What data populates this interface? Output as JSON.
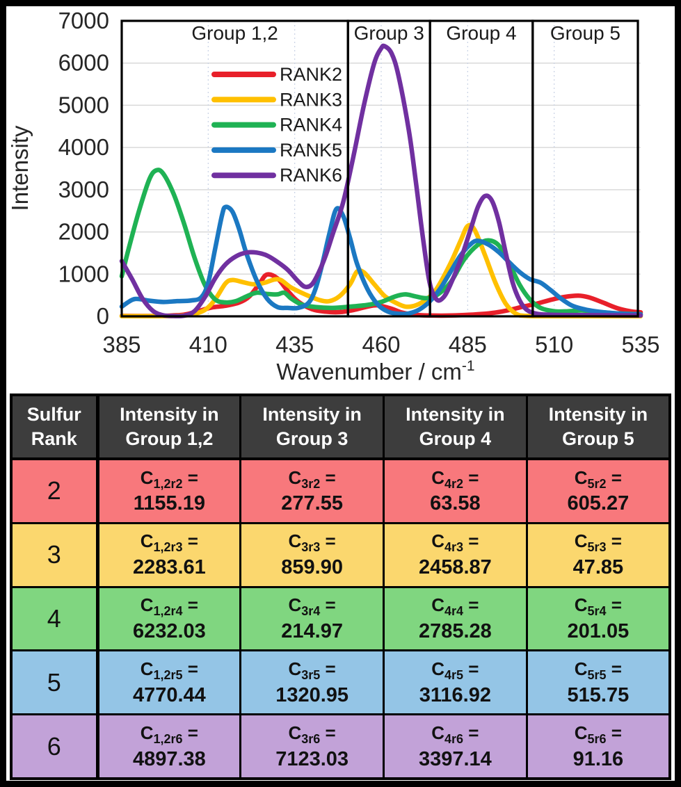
{
  "chart": {
    "y_axis": {
      "label": "Intensity",
      "ticks": [
        0,
        1000,
        2000,
        3000,
        4000,
        5000,
        6000,
        7000
      ],
      "min": 0,
      "max": 7000
    },
    "x_axis": {
      "label_base": "Wavenumber / cm",
      "label_sup": "-1",
      "ticks": [
        385,
        410,
        435,
        460,
        485,
        510,
        535
      ],
      "min": 385,
      "max": 535
    },
    "groups": [
      {
        "label": "Group 1,2",
        "x_from": 385,
        "x_to": 450.4
      },
      {
        "label": "Group 3",
        "x_from": 450.4,
        "x_to": 474.1
      },
      {
        "label": "Group 4",
        "x_from": 474.1,
        "x_to": 503.8
      },
      {
        "label": "Group 5",
        "x_from": 503.8,
        "x_to": 534.2
      }
    ],
    "legend": [
      {
        "label": "RANK2",
        "color": "#e8202a"
      },
      {
        "label": "RANK3",
        "color": "#ffc000"
      },
      {
        "label": "RANK4",
        "color": "#1fb254"
      },
      {
        "label": "RANK5",
        "color": "#1b78c2"
      },
      {
        "label": "RANK6",
        "color": "#7030a0"
      }
    ],
    "grid_color_h": "#d9d9d9",
    "grid_color_v": "#c9d2e4",
    "box_color": "#000000",
    "text_color": "#262626"
  },
  "chart_data": {
    "type": "line",
    "title": "",
    "xlabel": "Wavenumber / cm⁻¹",
    "ylabel": "Intensity",
    "xlim": [
      385,
      535
    ],
    "ylim": [
      0,
      7000
    ],
    "grid": true,
    "legend_position": "upper-left-inside",
    "series": [
      {
        "name": "RANK2",
        "color": "#e8202a",
        "points": [
          [
            385,
            10
          ],
          [
            392,
            8
          ],
          [
            398,
            15
          ],
          [
            403,
            40
          ],
          [
            407,
            120
          ],
          [
            411,
            210
          ],
          [
            415,
            250
          ],
          [
            419,
            330
          ],
          [
            422,
            480
          ],
          [
            425,
            800
          ],
          [
            427,
            990
          ],
          [
            430,
            900
          ],
          [
            433,
            600
          ],
          [
            436,
            350
          ],
          [
            440,
            170
          ],
          [
            444,
            110
          ],
          [
            448,
            100
          ],
          [
            452,
            150
          ],
          [
            456,
            230
          ],
          [
            459,
            260
          ],
          [
            463,
            180
          ],
          [
            466,
            90
          ],
          [
            470,
            35
          ],
          [
            474,
            20
          ],
          [
            479,
            18
          ],
          [
            484,
            30
          ],
          [
            489,
            55
          ],
          [
            493,
            90
          ],
          [
            497,
            150
          ],
          [
            501,
            230
          ],
          [
            505,
            300
          ],
          [
            509,
            390
          ],
          [
            513,
            460
          ],
          [
            517,
            490
          ],
          [
            520,
            450
          ],
          [
            524,
            330
          ],
          [
            528,
            200
          ],
          [
            532,
            120
          ],
          [
            535,
            95
          ]
        ]
      },
      {
        "name": "RANK3",
        "color": "#ffc000",
        "points": [
          [
            385,
            5
          ],
          [
            395,
            5
          ],
          [
            401,
            10
          ],
          [
            405,
            40
          ],
          [
            409,
            150
          ],
          [
            412,
            400
          ],
          [
            415,
            780
          ],
          [
            417,
            860
          ],
          [
            420,
            810
          ],
          [
            423,
            760
          ],
          [
            426,
            790
          ],
          [
            429,
            870
          ],
          [
            431,
            860
          ],
          [
            434,
            680
          ],
          [
            438,
            520
          ],
          [
            442,
            390
          ],
          [
            445,
            360
          ],
          [
            448,
            480
          ],
          [
            451,
            760
          ],
          [
            453,
            1060
          ],
          [
            455,
            1040
          ],
          [
            458,
            760
          ],
          [
            461,
            480
          ],
          [
            464,
            330
          ],
          [
            467,
            230
          ],
          [
            470,
            260
          ],
          [
            473,
            400
          ],
          [
            476,
            650
          ],
          [
            480,
            1250
          ],
          [
            483,
            1800
          ],
          [
            485,
            2140
          ],
          [
            487,
            2050
          ],
          [
            490,
            1450
          ],
          [
            493,
            800
          ],
          [
            496,
            300
          ],
          [
            499,
            60
          ],
          [
            502,
            10
          ],
          [
            510,
            5
          ],
          [
            525,
            5
          ],
          [
            535,
            5
          ]
        ]
      },
      {
        "name": "RANK4",
        "color": "#1fb254",
        "points": [
          [
            385,
            950
          ],
          [
            387,
            1600
          ],
          [
            390,
            2500
          ],
          [
            393,
            3250
          ],
          [
            395,
            3460
          ],
          [
            397,
            3380
          ],
          [
            400,
            2900
          ],
          [
            403,
            2200
          ],
          [
            406,
            1400
          ],
          [
            409,
            750
          ],
          [
            412,
            400
          ],
          [
            415,
            330
          ],
          [
            418,
            360
          ],
          [
            421,
            470
          ],
          [
            424,
            560
          ],
          [
            427,
            530
          ],
          [
            430,
            520
          ],
          [
            432,
            560
          ],
          [
            434,
            420
          ],
          [
            437,
            280
          ],
          [
            441,
            220
          ],
          [
            446,
            200
          ],
          [
            451,
            230
          ],
          [
            456,
            270
          ],
          [
            460,
            340
          ],
          [
            464,
            470
          ],
          [
            467,
            520
          ],
          [
            470,
            470
          ],
          [
            473,
            430
          ],
          [
            476,
            500
          ],
          [
            480,
            800
          ],
          [
            484,
            1350
          ],
          [
            488,
            1700
          ],
          [
            491,
            1800
          ],
          [
            494,
            1680
          ],
          [
            497,
            1250
          ],
          [
            500,
            750
          ],
          [
            503,
            400
          ],
          [
            506,
            200
          ],
          [
            510,
            120
          ],
          [
            514,
            120
          ],
          [
            518,
            140
          ],
          [
            522,
            110
          ],
          [
            527,
            75
          ],
          [
            531,
            60
          ],
          [
            535,
            50
          ]
        ]
      },
      {
        "name": "RANK5",
        "color": "#1b78c2",
        "points": [
          [
            385,
            230
          ],
          [
            388,
            390
          ],
          [
            390,
            410
          ],
          [
            393,
            370
          ],
          [
            397,
            340
          ],
          [
            401,
            360
          ],
          [
            405,
            375
          ],
          [
            408,
            450
          ],
          [
            410,
            800
          ],
          [
            412,
            1600
          ],
          [
            414,
            2400
          ],
          [
            415,
            2590
          ],
          [
            417,
            2480
          ],
          [
            419,
            2050
          ],
          [
            421,
            1500
          ],
          [
            424,
            850
          ],
          [
            427,
            420
          ],
          [
            430,
            220
          ],
          [
            433,
            200
          ],
          [
            436,
            200
          ],
          [
            439,
            320
          ],
          [
            441,
            650
          ],
          [
            443,
            1250
          ],
          [
            445,
            1950
          ],
          [
            447,
            2540
          ],
          [
            449,
            2380
          ],
          [
            451,
            1850
          ],
          [
            453,
            1250
          ],
          [
            456,
            650
          ],
          [
            459,
            280
          ],
          [
            462,
            110
          ],
          [
            465,
            60
          ],
          [
            468,
            70
          ],
          [
            471,
            160
          ],
          [
            474,
            350
          ],
          [
            477,
            650
          ],
          [
            480,
            1050
          ],
          [
            483,
            1450
          ],
          [
            486,
            1720
          ],
          [
            488,
            1790
          ],
          [
            491,
            1700
          ],
          [
            494,
            1520
          ],
          [
            497,
            1280
          ],
          [
            500,
            1050
          ],
          [
            503,
            880
          ],
          [
            506,
            800
          ],
          [
            509,
            620
          ],
          [
            512,
            420
          ],
          [
            515,
            260
          ],
          [
            518,
            180
          ],
          [
            521,
            130
          ],
          [
            525,
            90
          ],
          [
            530,
            60
          ],
          [
            535,
            45
          ]
        ]
      },
      {
        "name": "RANK6",
        "color": "#7030a0",
        "points": [
          [
            385,
            1310
          ],
          [
            388,
            880
          ],
          [
            391,
            420
          ],
          [
            394,
            130
          ],
          [
            397,
            25
          ],
          [
            400,
            8
          ],
          [
            403,
            15
          ],
          [
            406,
            120
          ],
          [
            409,
            450
          ],
          [
            412,
            900
          ],
          [
            415,
            1230
          ],
          [
            418,
            1420
          ],
          [
            421,
            1510
          ],
          [
            424,
            1510
          ],
          [
            427,
            1440
          ],
          [
            430,
            1290
          ],
          [
            433,
            1100
          ],
          [
            436,
            830
          ],
          [
            438,
            700
          ],
          [
            440,
            760
          ],
          [
            442,
            1050
          ],
          [
            444,
            1450
          ],
          [
            446,
            1950
          ],
          [
            449,
            2700
          ],
          [
            452,
            3800
          ],
          [
            455,
            5000
          ],
          [
            458,
            6000
          ],
          [
            460,
            6350
          ],
          [
            461,
            6400
          ],
          [
            463,
            6230
          ],
          [
            465,
            5700
          ],
          [
            468,
            4400
          ],
          [
            470,
            3200
          ],
          [
            472,
            1900
          ],
          [
            474,
            800
          ],
          [
            476,
            400
          ],
          [
            478,
            450
          ],
          [
            480,
            750
          ],
          [
            483,
            1350
          ],
          [
            486,
            2100
          ],
          [
            488,
            2600
          ],
          [
            490,
            2850
          ],
          [
            492,
            2740
          ],
          [
            494,
            2250
          ],
          [
            496,
            1500
          ],
          [
            498,
            800
          ],
          [
            500,
            380
          ],
          [
            502,
            160
          ],
          [
            505,
            60
          ],
          [
            510,
            35
          ],
          [
            520,
            28
          ],
          [
            535,
            20
          ]
        ]
      }
    ]
  },
  "table": {
    "header": [
      {
        "line1": "Sulfur",
        "line2": "Rank"
      },
      {
        "line1": "Intensity in",
        "line2": "Group 1,2"
      },
      {
        "line1": "Intensity in",
        "line2": "Group 3"
      },
      {
        "line1": "Intensity in",
        "line2": "Group 4"
      },
      {
        "line1": "Intensity in",
        "line2": "Group 5"
      }
    ],
    "cell_base": "C",
    "cell_eq": " =",
    "rows": [
      {
        "rank": "2",
        "color": "#f8787c",
        "cells": [
          {
            "sub": "1,2r2",
            "value": "1155.19"
          },
          {
            "sub": "3r2",
            "value": "277.55"
          },
          {
            "sub": "4r2",
            "value": "63.58"
          },
          {
            "sub": "5r2",
            "value": "605.27"
          }
        ]
      },
      {
        "rank": "3",
        "color": "#fbd76e",
        "cells": [
          {
            "sub": "1,2r3",
            "value": "2283.61"
          },
          {
            "sub": "3r3",
            "value": "859.90"
          },
          {
            "sub": "4r3",
            "value": "2458.87"
          },
          {
            "sub": "5r3",
            "value": "47.85"
          }
        ]
      },
      {
        "rank": "4",
        "color": "#80d680",
        "cells": [
          {
            "sub": "1,2r4",
            "value": "6232.03"
          },
          {
            "sub": "3r4",
            "value": "214.97"
          },
          {
            "sub": "4r4",
            "value": "2785.28"
          },
          {
            "sub": "5r4",
            "value": "201.05"
          }
        ]
      },
      {
        "rank": "5",
        "color": "#94c5e6",
        "cells": [
          {
            "sub": "1,2r5",
            "value": "4770.44"
          },
          {
            "sub": "3r5",
            "value": "1320.95"
          },
          {
            "sub": "4r5",
            "value": "3116.92"
          },
          {
            "sub": "5r5",
            "value": "515.75"
          }
        ]
      },
      {
        "rank": "6",
        "color": "#c2a2d8",
        "cells": [
          {
            "sub": "1,2r6",
            "value": "4897.38"
          },
          {
            "sub": "3r6",
            "value": "7123.03"
          },
          {
            "sub": "4r6",
            "value": "3397.14"
          },
          {
            "sub": "5r6",
            "value": "91.16"
          }
        ]
      }
    ]
  }
}
